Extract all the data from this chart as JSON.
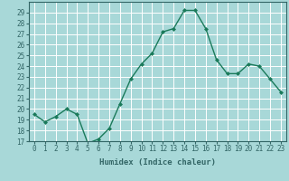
{
  "title": "",
  "xlabel": "Humidex (Indice chaleur)",
  "ylabel": "",
  "x": [
    0,
    1,
    2,
    3,
    4,
    5,
    6,
    7,
    8,
    9,
    10,
    11,
    12,
    13,
    14,
    15,
    16,
    17,
    18,
    19,
    20,
    21,
    22,
    23
  ],
  "y": [
    19.5,
    18.8,
    19.3,
    20.0,
    19.5,
    16.8,
    17.2,
    18.2,
    20.5,
    22.8,
    24.2,
    25.2,
    27.2,
    27.5,
    29.2,
    29.2,
    27.5,
    24.6,
    23.3,
    23.3,
    24.2,
    24.0,
    22.8,
    21.6
  ],
  "line_color": "#1a7a5a",
  "marker": "D",
  "marker_size": 2.0,
  "bg_color": "#a8d8d8",
  "grid_color": "#ffffff",
  "ylim": [
    17,
    30
  ],
  "yticks": [
    17,
    18,
    19,
    20,
    21,
    22,
    23,
    24,
    25,
    26,
    27,
    28,
    29
  ],
  "xticks": [
    0,
    1,
    2,
    3,
    4,
    5,
    6,
    7,
    8,
    9,
    10,
    11,
    12,
    13,
    14,
    15,
    16,
    17,
    18,
    19,
    20,
    21,
    22,
    23
  ],
  "tick_label_fontsize": 5.5,
  "xlabel_fontsize": 6.5,
  "line_width": 1.0,
  "spine_color": "#336666"
}
